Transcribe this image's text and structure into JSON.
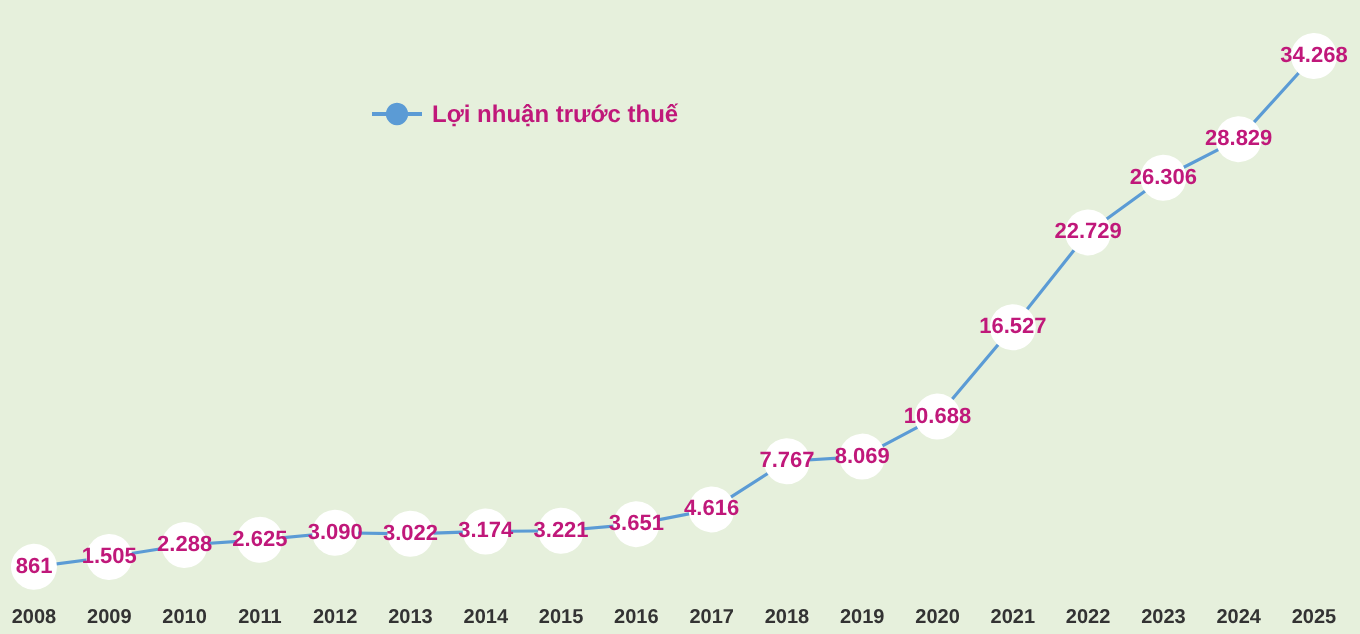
{
  "chart_data": {
    "type": "line",
    "categories": [
      "2008",
      "2009",
      "2010",
      "2011",
      "2012",
      "2013",
      "2014",
      "2015",
      "2016",
      "2017",
      "2018",
      "2019",
      "2020",
      "2021",
      "2022",
      "2023",
      "2024",
      "2025"
    ],
    "series": [
      {
        "name": "Lợi nhuận trước thuế",
        "color": "#5b9bd5",
        "values": [
          861,
          1505,
          2288,
          2625,
          3090,
          3022,
          3174,
          3221,
          3651,
          4616,
          7767,
          8069,
          10688,
          16527,
          22729,
          26306,
          28829,
          34268
        ],
        "value_labels": [
          "861",
          "1.505",
          "2.288",
          "2.625",
          "3.090",
          "3.022",
          "3.174",
          "3.221",
          "3.651",
          "4.616",
          "7.767",
          "8.069",
          "10.688",
          "16.527",
          "22.729",
          "26.306",
          "28.829",
          "34.268"
        ]
      }
    ],
    "legend": "top left",
    "marker": "circle",
    "grid": false
  }
}
